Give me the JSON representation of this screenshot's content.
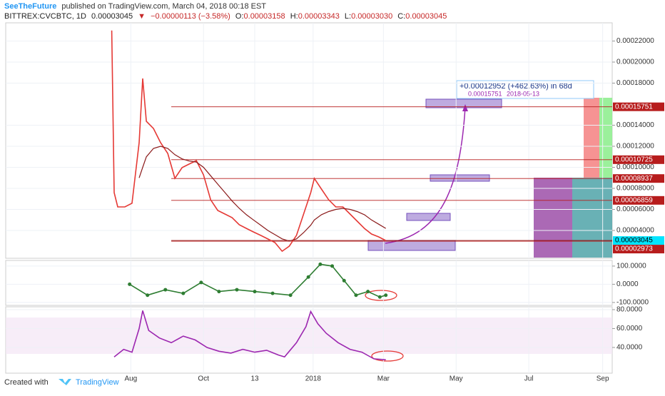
{
  "header": {
    "author": "SeeTheFuture",
    "published": "published on TradingView.com, March 04, 2018 00:18 EST",
    "symbol": "BITTREX:CVCBTC, 1D",
    "last": "0.00003045",
    "arrow": "▼",
    "change": "−0.00000113 (−3.58%)",
    "ohlc": [
      {
        "label": "O:",
        "value": "0.00003158"
      },
      {
        "label": "H:",
        "value": "0.00003343"
      },
      {
        "label": "L:",
        "value": "0.00003030"
      },
      {
        "label": "C:",
        "value": "0.00003045"
      }
    ]
  },
  "chart_data": [
    {
      "type": "line",
      "x": [
        15,
        17,
        20,
        26,
        32,
        38,
        41,
        44,
        50,
        56,
        62,
        68,
        74,
        80,
        86,
        92,
        98,
        104,
        110,
        116,
        122,
        128,
        134,
        140,
        146,
        152,
        158,
        164,
        170,
        176,
        182,
        185,
        191,
        197,
        203,
        209,
        215,
        221,
        227,
        233,
        239,
        245
      ],
      "xlim": [
        -74,
        435
      ],
      "xticks": [
        {
          "value": 31,
          "label": "Aug"
        },
        {
          "value": 92,
          "label": "Oct"
        },
        {
          "value": 135,
          "label": "13"
        },
        {
          "value": 184,
          "label": "2018"
        },
        {
          "value": 243,
          "label": "Mar"
        },
        {
          "value": 304,
          "label": "May"
        },
        {
          "value": 365,
          "label": "Jul"
        },
        {
          "value": 427,
          "label": "Sep"
        }
      ],
      "ylim": [
        1.356e-05,
        0.00023729
      ],
      "yticks": [
        {
          "value": 4e-05,
          "label": "0.00004000"
        },
        {
          "value": 6e-05,
          "label": "0.00006000"
        },
        {
          "value": 8e-05,
          "label": "0.00008000"
        },
        {
          "value": 0.0001,
          "label": "0.00010000"
        },
        {
          "value": 0.00012,
          "label": "0.00012000"
        },
        {
          "value": 0.00014,
          "label": "0.00014000"
        },
        {
          "value": 0.00018,
          "label": "0.00018000"
        },
        {
          "value": 0.0002,
          "label": "0.00020000"
        },
        {
          "value": 0.00022,
          "label": "0.00022000"
        }
      ],
      "series": [
        {
          "color": "#e53935",
          "values": [
            0.00023,
            7.59e-05,
            6.24e-05,
            6.24e-05,
            6.58e-05,
            0.0001234,
            0.0001844,
            0.0001437,
            0.0001369,
            0.0001234,
            0.0001132,
            8.95e-05,
            9.97e-05,
            0.0001031,
            0.0001064,
            9.29e-05,
            6.92e-05,
            5.9e-05,
            5.56e-05,
            5.22e-05,
            4.54e-05,
            4.2e-05,
            3.86e-05,
            3.53e-05,
            3.19e-05,
            2.85e-05,
            2.03e-05,
            2.51e-05,
            3.53e-05,
            5.56e-05,
            7.59e-05,
            8.95e-05,
            7.93e-05,
            6.92e-05,
            6.24e-05,
            6.24e-05,
            5.56e-05,
            4.88e-05,
            4.2e-05,
            3.66e-05,
            3.39e-05,
            3.045e-05
          ]
        },
        {
          "color": "#8b1a1a",
          "values": [
            null,
            null,
            null,
            null,
            null,
            9e-05,
            0.0001,
            0.00011,
            0.000118,
            0.00012,
            0.000118,
            0.000112,
            0.000108,
            0.000106,
            0.000105,
            0.0001,
            9.2e-05,
            8.4e-05,
            7.6e-05,
            6.8e-05,
            6.1e-05,
            5.5e-05,
            5e-05,
            4.5e-05,
            4e-05,
            3.6e-05,
            3.2e-05,
            3e-05,
            3.2e-05,
            3.8e-05,
            4.5e-05,
            5e-05,
            5.5e-05,
            5.8e-05,
            6e-05,
            6.1e-05,
            6e-05,
            5.8e-05,
            5.5e-05,
            5e-05,
            4.6e-05,
            4.2e-05
          ]
        }
      ],
      "price_levels": [
        0.00015751,
        0.00010725,
        8.937e-05,
        6.859e-05,
        3.045e-05,
        2.973e-05
      ],
      "level_colors": [
        "#b71c1c",
        "#b71c1c",
        "#b71c1c",
        "#b71c1c",
        "#00e5ff",
        "#b71c1c"
      ],
      "annotation": {
        "change": "+0.00012952 (+462.63%) in 68d",
        "target": "0.00015751",
        "date": "2018-05-13"
      }
    },
    {
      "type": "line",
      "x": [
        30,
        45,
        60,
        75,
        90,
        105,
        120,
        135,
        150,
        165,
        180,
        190,
        200,
        210,
        220,
        230,
        240,
        245
      ],
      "xlim": [
        -74,
        435
      ],
      "ylim": [
        -116,
        131
      ],
      "yticks": [
        {
          "value": 100,
          "label": "100.0000"
        },
        {
          "value": 0,
          "label": "0.0000"
        },
        {
          "value": -100,
          "label": "-100.0000"
        }
      ],
      "series": [
        {
          "color": "#2e7d32",
          "values": [
            0,
            -60,
            -30,
            -50,
            10,
            -40,
            -30,
            -40,
            -50,
            -60,
            40,
            110,
            100,
            20,
            -60,
            -40,
            -70,
            -60
          ]
        }
      ]
    },
    {
      "type": "line",
      "x": [
        17,
        25,
        32,
        38,
        41,
        46,
        55,
        65,
        75,
        85,
        95,
        105,
        115,
        125,
        135,
        145,
        155,
        160,
        170,
        178,
        182,
        188,
        195,
        205,
        215,
        225,
        235,
        245
      ],
      "xlim": [
        -74,
        435
      ],
      "ylim": [
        12.8,
        83
      ],
      "yticks": [
        {
          "value": 80,
          "label": "80.0000"
        },
        {
          "value": 60,
          "label": "60.0000"
        },
        {
          "value": 40,
          "label": "40.0000"
        }
      ],
      "series": [
        {
          "color": "#9c27b0",
          "values": [
            30,
            38,
            35,
            60,
            79,
            58,
            50,
            45,
            52,
            48,
            40,
            36,
            34,
            38,
            35,
            37,
            32,
            30,
            45,
            62,
            78,
            65,
            55,
            45,
            38,
            35,
            28,
            27
          ]
        }
      ]
    }
  ],
  "footer": {
    "created": "Created with",
    "brand": "TradingView"
  }
}
